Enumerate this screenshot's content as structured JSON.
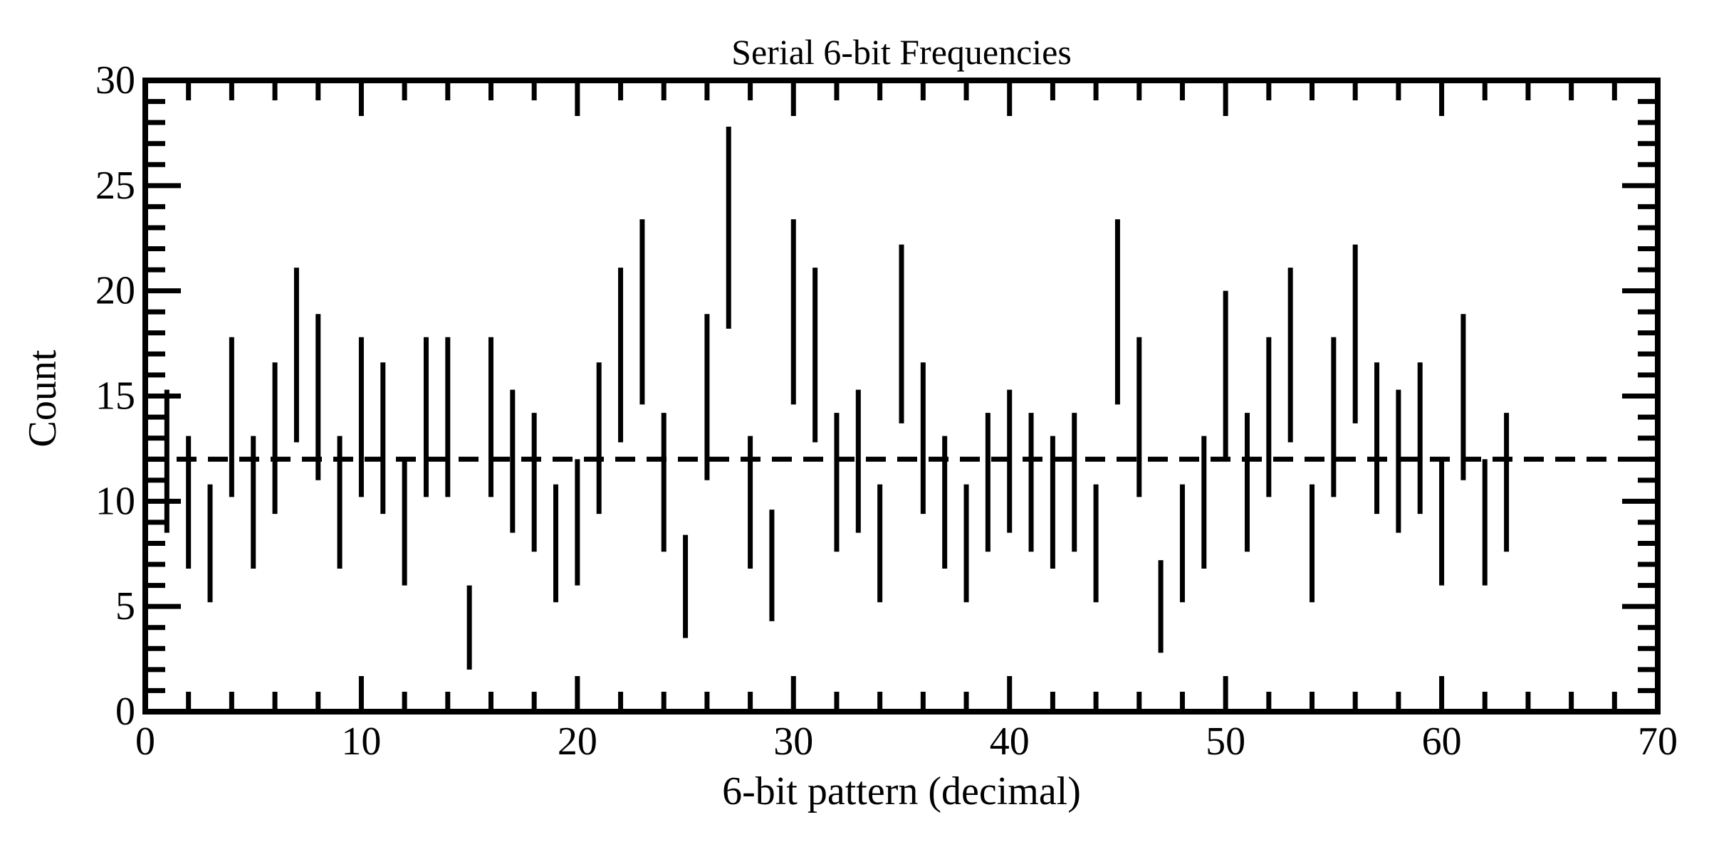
{
  "chart_data": {
    "type": "errorbar",
    "title": "Serial 6-bit Frequencies",
    "xlabel": "6-bit pattern (decimal)",
    "ylabel": "Count",
    "xlim": [
      0,
      70
    ],
    "ylim": [
      0,
      30
    ],
    "x_ticks": [
      "0",
      "10",
      "20",
      "30",
      "40",
      "50",
      "60",
      "70"
    ],
    "y_ticks": [
      "0",
      "5",
      "10",
      "15",
      "20",
      "25",
      "30"
    ],
    "reference_line": {
      "y": 12,
      "style": "dashed"
    },
    "grid": false,
    "series": [
      {
        "x": [
          0,
          1,
          2,
          3,
          4,
          5,
          6,
          7,
          8,
          9,
          10,
          11,
          12,
          13,
          14,
          15,
          16,
          17,
          18,
          19,
          20,
          21,
          22,
          23,
          24,
          25,
          26,
          27,
          28,
          29,
          30,
          31,
          32,
          33,
          34,
          35,
          36,
          37,
          38,
          39,
          40,
          41,
          42,
          43,
          44,
          45,
          46,
          47,
          48,
          49,
          50,
          51,
          52,
          53,
          54,
          55,
          56,
          57,
          58,
          59,
          60,
          61,
          62,
          63
        ],
        "y_low": [
          4.5,
          8.5,
          6.8,
          5.2,
          10.2,
          6.8,
          9.4,
          12.8,
          11.0,
          6.8,
          10.2,
          9.4,
          6.0,
          10.2,
          10.2,
          2.0,
          10.2,
          8.5,
          7.6,
          5.2,
          6.0,
          9.4,
          12.8,
          14.6,
          7.6,
          3.5,
          11.0,
          18.2,
          6.8,
          4.3,
          14.6,
          12.8,
          7.6,
          8.5,
          5.2,
          13.7,
          9.4,
          6.8,
          5.2,
          7.6,
          8.5,
          7.6,
          6.8,
          7.6,
          5.2,
          14.6,
          10.2,
          2.8,
          5.2,
          6.8,
          12.0,
          7.6,
          10.2,
          12.8,
          5.2,
          10.2,
          13.7,
          9.4,
          8.5,
          9.4,
          6.0,
          11.0,
          6.0,
          7.6
        ],
        "y_high": [
          9.5,
          15.3,
          13.1,
          10.8,
          17.8,
          13.1,
          16.6,
          21.1,
          18.9,
          13.1,
          17.8,
          16.6,
          12.0,
          17.8,
          17.8,
          6.0,
          17.8,
          15.3,
          14.2,
          10.8,
          12.0,
          16.6,
          21.1,
          23.4,
          14.2,
          8.4,
          18.9,
          27.8,
          13.1,
          9.6,
          23.4,
          21.1,
          14.2,
          15.3,
          10.8,
          22.2,
          16.6,
          13.1,
          10.8,
          14.2,
          15.3,
          14.2,
          13.1,
          14.2,
          10.8,
          23.4,
          17.8,
          7.2,
          10.8,
          13.1,
          20.0,
          14.2,
          17.8,
          21.1,
          10.8,
          17.8,
          22.2,
          16.6,
          15.3,
          16.6,
          12.0,
          18.9,
          12.0,
          14.2
        ]
      }
    ]
  }
}
